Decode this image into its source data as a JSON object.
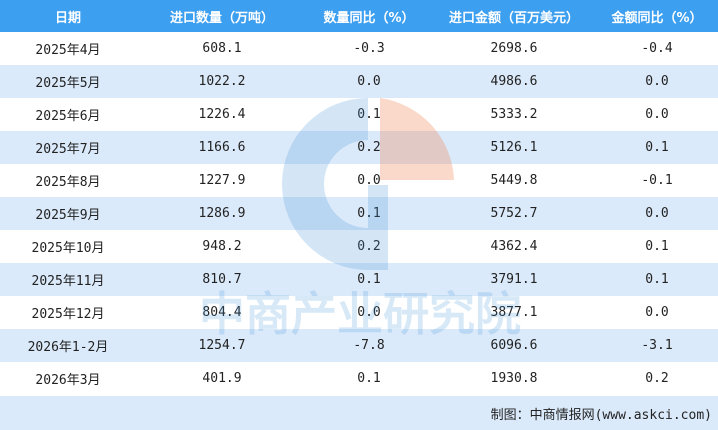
{
  "chart_data": {
    "type": "table",
    "columns": [
      "日期",
      "进口数量（万吨）",
      "数量同比（%）",
      "进口金额（百万美元）",
      "金额同比（%）"
    ],
    "rows": [
      [
        "2025年4月",
        "608.1",
        "-0.3",
        "2698.6",
        "-0.4"
      ],
      [
        "2025年5月",
        "1022.2",
        "0.0",
        "4986.6",
        "0.0"
      ],
      [
        "2025年6月",
        "1226.4",
        "0.1",
        "5333.2",
        "0.0"
      ],
      [
        "2025年7月",
        "1166.6",
        "0.2",
        "5126.1",
        "0.1"
      ],
      [
        "2025年8月",
        "1227.9",
        "0.0",
        "5449.8",
        "-0.1"
      ],
      [
        "2025年9月",
        "1286.9",
        "0.1",
        "5752.7",
        "0.0"
      ],
      [
        "2025年10月",
        "948.2",
        "0.2",
        "4362.4",
        "0.1"
      ],
      [
        "2025年11月",
        "810.7",
        "0.1",
        "3791.1",
        "0.1"
      ],
      [
        "2025年12月",
        "804.4",
        "0.0",
        "3877.1",
        "0.0"
      ],
      [
        "2026年1-2月",
        "1254.7",
        "-7.8",
        "6096.6",
        "-3.1"
      ],
      [
        "2026年3月",
        "401.9",
        "0.1",
        "1930.8",
        "0.2"
      ]
    ]
  },
  "footer": "制图：中商情报网(www.askci.com)",
  "watermark": "中商产业研究院",
  "colors": {
    "header": "#3d9ff0",
    "stripe": "#dbeafa"
  }
}
